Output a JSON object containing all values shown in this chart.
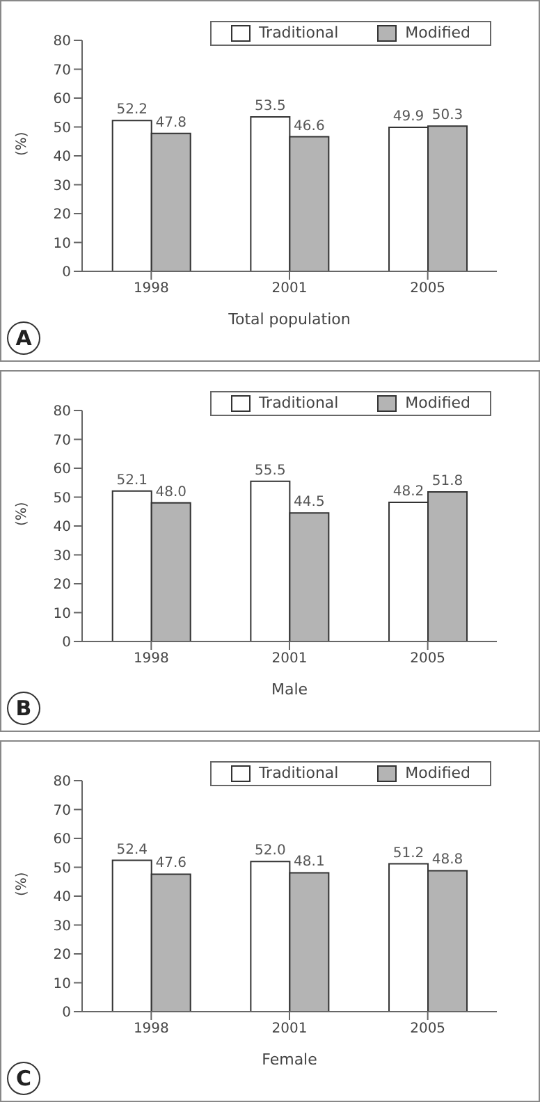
{
  "chart_data": [
    {
      "type": "bar",
      "categories": [
        "1998",
        "2001",
        "2005"
      ],
      "xlabel": "Total population",
      "ylabel": "(%)",
      "ylim": [
        0,
        80
      ],
      "yticks": [
        0,
        10,
        20,
        30,
        40,
        50,
        60,
        70,
        80
      ],
      "legend": "top",
      "annotations": [
        "A"
      ],
      "series": [
        {
          "name": "Traditional",
          "color": "#ffffff",
          "values": [
            52.2,
            53.5,
            49.9
          ],
          "value_labels": [
            "52.2",
            "53.5",
            "49.9"
          ]
        },
        {
          "name": "Modified",
          "color": "#b4b4b4",
          "values": [
            47.8,
            46.6,
            50.3
          ],
          "value_labels": [
            "47.8",
            "46.6",
            "50.3"
          ]
        }
      ]
    },
    {
      "type": "bar",
      "categories": [
        "1998",
        "2001",
        "2005"
      ],
      "xlabel": "Male",
      "ylabel": "(%)",
      "ylim": [
        0,
        80
      ],
      "yticks": [
        0,
        10,
        20,
        30,
        40,
        50,
        60,
        70,
        80
      ],
      "legend": "top",
      "annotations": [
        "B"
      ],
      "series": [
        {
          "name": "Traditional",
          "color": "#ffffff",
          "values": [
            52.1,
            55.5,
            48.2
          ],
          "value_labels": [
            "52.1",
            "55.5",
            "48.2"
          ]
        },
        {
          "name": "Modified",
          "color": "#b4b4b4",
          "values": [
            48.0,
            44.5,
            51.8
          ],
          "value_labels": [
            "48.0",
            "44.5",
            "51.8"
          ]
        }
      ]
    },
    {
      "type": "bar",
      "categories": [
        "1998",
        "2001",
        "2005"
      ],
      "xlabel": "Female",
      "ylabel": "(%)",
      "ylim": [
        0,
        80
      ],
      "yticks": [
        0,
        10,
        20,
        30,
        40,
        50,
        60,
        70,
        80
      ],
      "legend": "top",
      "annotations": [
        "C"
      ],
      "series": [
        {
          "name": "Traditional",
          "color": "#ffffff",
          "values": [
            52.4,
            52.0,
            51.2
          ],
          "value_labels": [
            "52.4",
            "52.0",
            "51.2"
          ]
        },
        {
          "name": "Modified",
          "color": "#b4b4b4",
          "values": [
            47.6,
            48.1,
            48.8
          ],
          "value_labels": [
            "47.6",
            "48.1",
            "48.8"
          ]
        }
      ]
    }
  ]
}
